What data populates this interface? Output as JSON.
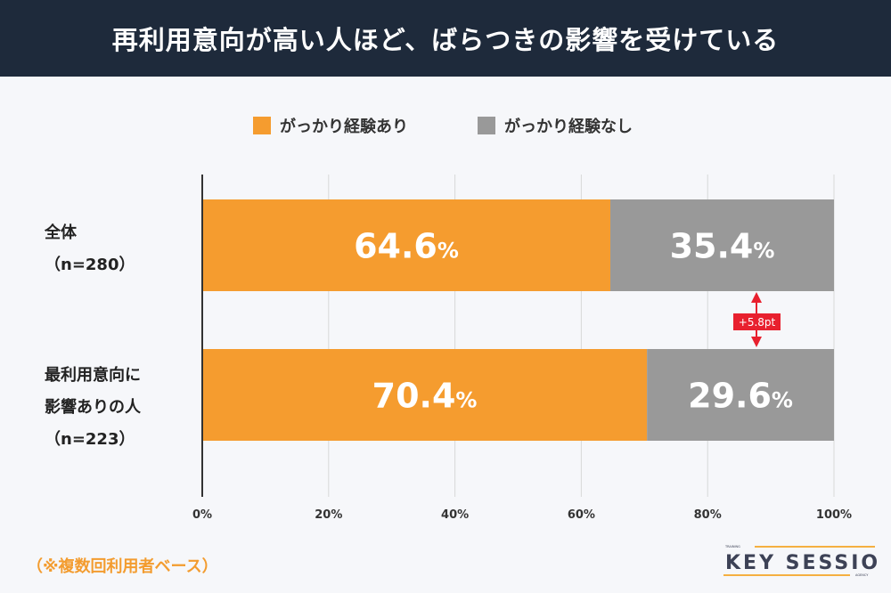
{
  "header": {
    "title": "再利用意向が高い人ほど、ばらつきの影響を受けている"
  },
  "chart_data": {
    "type": "bar",
    "stacked": true,
    "orientation": "horizontal",
    "categories": [
      [
        "全体",
        "（n=280）"
      ],
      [
        "最利用意向に",
        "影響ありの人",
        "（n=223）"
      ]
    ],
    "series": [
      {
        "name": "がっかり経験あり",
        "values": [
          64.6,
          70.4
        ],
        "color": "#f59c2f",
        "labels": [
          "64.6",
          "70.4"
        ]
      },
      {
        "name": "がっかり経験なし",
        "values": [
          35.4,
          29.6
        ],
        "color": "#999999",
        "labels": [
          "35.4",
          "29.6"
        ]
      }
    ],
    "label_unit": "%",
    "xlim": [
      0,
      100
    ],
    "xticks": [
      "0%",
      "20%",
      "40%",
      "60%",
      "80%",
      "100%"
    ],
    "grid": true,
    "legend": "top-center",
    "annotation": {
      "text": "+5.8pt",
      "color": "#e8202e"
    }
  },
  "footnote": "（※複数回利用者ベース）",
  "logo": {
    "top": "TRAINING",
    "main": "KEY SESSION",
    "bottom": "AGENCY",
    "text_color": "#3d4256",
    "accent": "#f5b041"
  }
}
